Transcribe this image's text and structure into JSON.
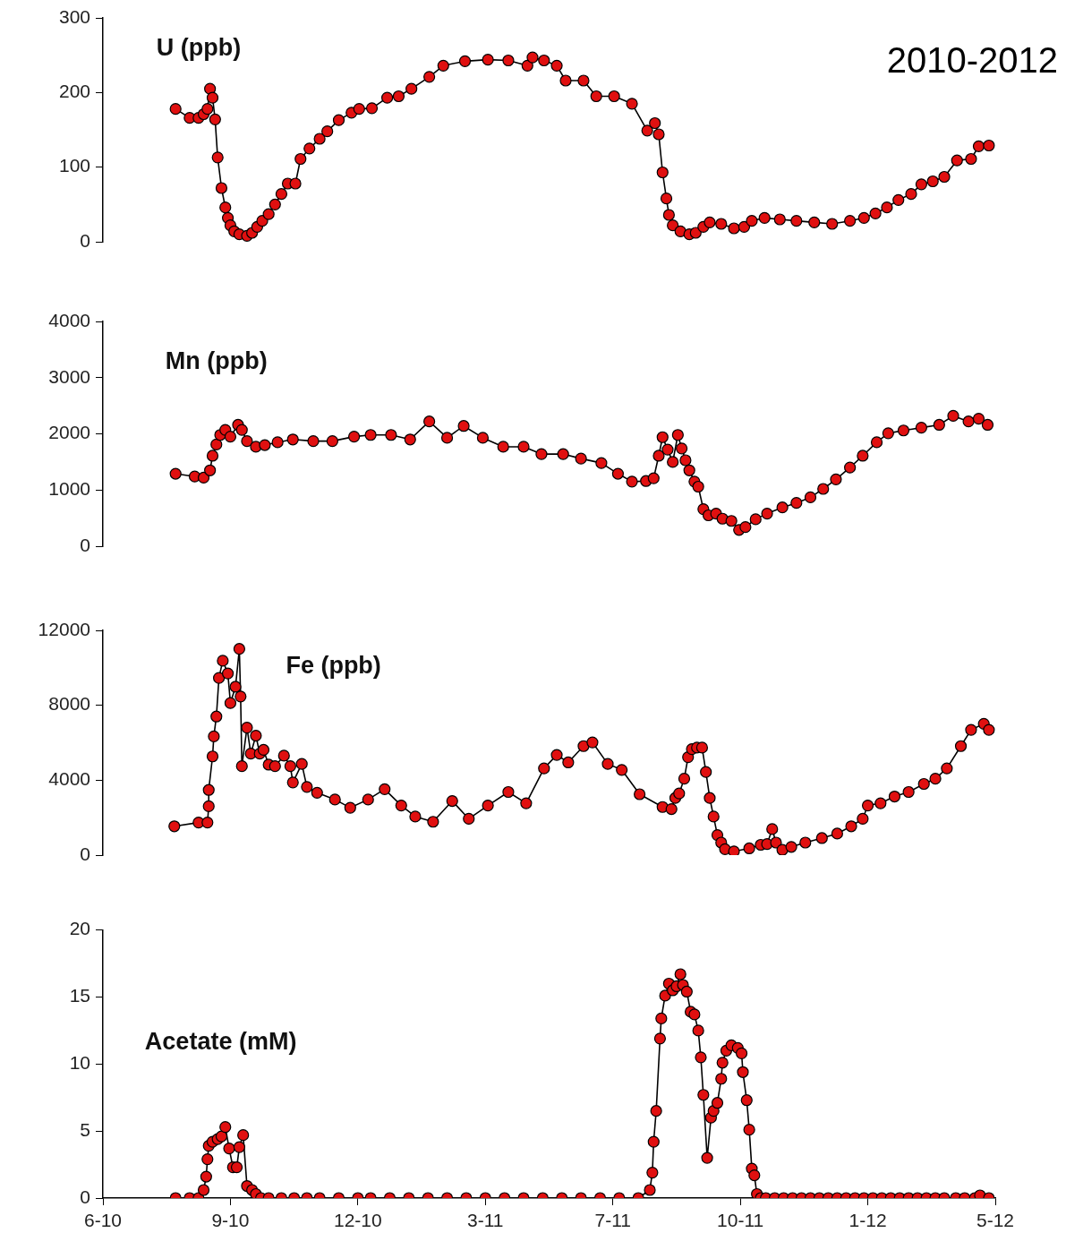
{
  "chart_data": [
    {
      "type": "line",
      "title": "U (ppb)",
      "annotations": [
        "2010-2012"
      ],
      "marker": "circle",
      "color": "#e01010",
      "tick_labels": "y",
      "xlim": [
        "2010-06-01",
        "2012-05-01"
      ],
      "ylim": [
        0,
        300
      ],
      "yticks": [
        0,
        100,
        200,
        300
      ],
      "x": [
        "2010-07-28",
        "2010-08-08",
        "2010-08-15",
        "2010-08-19",
        "2010-08-22",
        "2010-08-24",
        "2010-08-26",
        "2010-08-28",
        "2010-08-30",
        "2010-09-02",
        "2010-09-05",
        "2010-09-07",
        "2010-09-09",
        "2010-09-12",
        "2010-09-16",
        "2010-09-22",
        "2010-09-26",
        "2010-09-30",
        "2010-10-04",
        "2010-10-09",
        "2010-10-14",
        "2010-10-19",
        "2010-10-24",
        "2010-10-30",
        "2010-11-03",
        "2010-11-10",
        "2010-11-18",
        "2010-11-24",
        "2010-12-03",
        "2010-12-13",
        "2010-12-19",
        "2010-12-29",
        "2011-01-10",
        "2011-01-19",
        "2011-01-29",
        "2011-02-12",
        "2011-02-23",
        "2011-03-12",
        "2011-03-30",
        "2011-04-15",
        "2011-04-30",
        "2011-05-04",
        "2011-05-13",
        "2011-05-23",
        "2011-05-30",
        "2011-06-13",
        "2011-06-23",
        "2011-07-07",
        "2011-07-21",
        "2011-08-02",
        "2011-08-08",
        "2011-08-11",
        "2011-08-14",
        "2011-08-17",
        "2011-08-19",
        "2011-08-22",
        "2011-08-28",
        "2011-09-04",
        "2011-09-09",
        "2011-09-15",
        "2011-09-20",
        "2011-09-29",
        "2011-10-09",
        "2011-10-17",
        "2011-10-23",
        "2011-11-02",
        "2011-11-14",
        "2011-11-27",
        "2011-12-11",
        "2011-12-25",
        "2012-01-08",
        "2012-01-19",
        "2012-01-28",
        "2012-02-06",
        "2012-02-15",
        "2012-02-25",
        "2012-03-04",
        "2012-03-13",
        "2012-03-22",
        "2012-04-01",
        "2012-04-12",
        "2012-04-18",
        "2012-04-26"
      ],
      "values": [
        178,
        166,
        166,
        171,
        178,
        205,
        193,
        164,
        113,
        72,
        46,
        32,
        22,
        14,
        10,
        8,
        12,
        20,
        28,
        37,
        50,
        64,
        78,
        78,
        111,
        125,
        138,
        148,
        163,
        173,
        178,
        179,
        193,
        195,
        205,
        221,
        236,
        242,
        244,
        243,
        236,
        247,
        243,
        236,
        216,
        216,
        195,
        195,
        185,
        149,
        159,
        144,
        93,
        58,
        36,
        22,
        14,
        10,
        12,
        20,
        26,
        24,
        18,
        20,
        28,
        32,
        30,
        28,
        26,
        24,
        28,
        32,
        38,
        46,
        56,
        64,
        77,
        81,
        87,
        109,
        111,
        128,
        129
      ]
    },
    {
      "type": "line",
      "title": "Mn (ppb)",
      "marker": "circle",
      "color": "#e01010",
      "tick_labels": "y",
      "xlim": [
        "2010-06-01",
        "2012-05-01"
      ],
      "ylim": [
        0,
        4000
      ],
      "yticks": [
        0,
        1000,
        2000,
        3000,
        4000
      ],
      "x": [
        "2010-07-28",
        "2010-08-12",
        "2010-08-19",
        "2010-08-24",
        "2010-08-26",
        "2010-08-29",
        "2010-09-01",
        "2010-09-05",
        "2010-09-09",
        "2010-09-15",
        "2010-09-18",
        "2010-09-22",
        "2010-09-29",
        "2010-10-06",
        "2010-10-16",
        "2010-10-28",
        "2010-11-13",
        "2010-11-28",
        "2010-12-15",
        "2010-12-28",
        "2011-01-13",
        "2011-01-28",
        "2011-02-12",
        "2011-02-26",
        "2011-03-11",
        "2011-03-26",
        "2011-04-11",
        "2011-04-27",
        "2011-05-11",
        "2011-05-28",
        "2011-06-11",
        "2011-06-27",
        "2011-07-10",
        "2011-07-21",
        "2011-08-01",
        "2011-08-07",
        "2011-08-11",
        "2011-08-14",
        "2011-08-18",
        "2011-08-22",
        "2011-08-26",
        "2011-08-29",
        "2011-09-01",
        "2011-09-04",
        "2011-09-08",
        "2011-09-11",
        "2011-09-15",
        "2011-09-19",
        "2011-09-25",
        "2011-09-30",
        "2011-10-07",
        "2011-10-13",
        "2011-10-18",
        "2011-10-26",
        "2011-11-04",
        "2011-11-16",
        "2011-11-27",
        "2011-12-08",
        "2011-12-18",
        "2011-12-28",
        "2012-01-08",
        "2012-01-18",
        "2012-01-29",
        "2012-02-07",
        "2012-02-19",
        "2012-03-04",
        "2012-03-18",
        "2012-03-29",
        "2012-04-10",
        "2012-04-18",
        "2012-04-25"
      ],
      "values": [
        1290,
        1240,
        1220,
        1350,
        1610,
        1810,
        1980,
        2070,
        1950,
        2160,
        2070,
        1870,
        1770,
        1800,
        1850,
        1900,
        1870,
        1870,
        1950,
        1980,
        1980,
        1900,
        2220,
        1930,
        2140,
        1930,
        1770,
        1770,
        1640,
        1640,
        1560,
        1480,
        1290,
        1150,
        1160,
        1210,
        1610,
        1940,
        1720,
        1500,
        1980,
        1740,
        1530,
        1350,
        1150,
        1060,
        660,
        550,
        580,
        490,
        450,
        290,
        340,
        480,
        580,
        690,
        770,
        870,
        1020,
        1190,
        1400,
        1610,
        1850,
        2010,
        2060,
        2110,
        2160,
        2320,
        2220,
        2270,
        2160
      ]
    },
    {
      "type": "line",
      "title": "Fe (ppb)",
      "marker": "circle",
      "color": "#e01010",
      "tick_labels": "y",
      "xlim": [
        "2010-06-01",
        "2012-05-01"
      ],
      "ylim": [
        0,
        12000
      ],
      "yticks": [
        0,
        4000,
        8000,
        12000
      ],
      "x": [
        "2010-07-27",
        "2010-08-15",
        "2010-08-22",
        "2010-08-23",
        "2010-08-23",
        "2010-08-26",
        "2010-08-27",
        "2010-08-29",
        "2010-08-31",
        "2010-09-03",
        "2010-09-07",
        "2010-09-09",
        "2010-09-13",
        "2010-09-16",
        "2010-09-17",
        "2010-09-18",
        "2010-09-22",
        "2010-09-25",
        "2010-09-29",
        "2010-10-02",
        "2010-10-05",
        "2010-10-09",
        "2010-10-14",
        "2010-10-21",
        "2010-10-26",
        "2010-10-28",
        "2010-11-04",
        "2010-11-08",
        "2010-11-16",
        "2010-11-30",
        "2010-12-12",
        "2010-12-26",
        "2011-01-08",
        "2011-01-21",
        "2011-02-01",
        "2011-02-15",
        "2011-03-02",
        "2011-03-15",
        "2011-03-30",
        "2011-04-15",
        "2011-04-29",
        "2011-05-13",
        "2011-05-23",
        "2011-06-01",
        "2011-06-13",
        "2011-06-20",
        "2011-07-02",
        "2011-07-13",
        "2011-07-27",
        "2011-08-14",
        "2011-08-21",
        "2011-08-24",
        "2011-08-27",
        "2011-08-31",
        "2011-09-03",
        "2011-09-06",
        "2011-09-10",
        "2011-09-14",
        "2011-09-17",
        "2011-09-20",
        "2011-09-23",
        "2011-09-26",
        "2011-09-29",
        "2011-10-02",
        "2011-10-09",
        "2011-10-21",
        "2011-10-30",
        "2011-11-04",
        "2011-11-08",
        "2011-11-11",
        "2011-11-16",
        "2011-11-23",
        "2011-12-04",
        "2011-12-17",
        "2011-12-29",
        "2012-01-09",
        "2012-01-18",
        "2012-01-22",
        "2012-02-01",
        "2012-02-12",
        "2012-02-23",
        "2012-03-06",
        "2012-03-15",
        "2012-03-24",
        "2012-04-04",
        "2012-04-12",
        "2012-04-22",
        "2012-04-26"
      ],
      "values": [
        1540,
        1740,
        1740,
        2610,
        3480,
        5270,
        6340,
        7400,
        9460,
        10380,
        9700,
        8120,
        8990,
        11010,
        8470,
        4750,
        6810,
        5420,
        6380,
        5420,
        5620,
        4830,
        4750,
        5310,
        4750,
        3880,
        4870,
        3640,
        3330,
        2970,
        2530,
        2970,
        3520,
        2650,
        2060,
        1780,
        2890,
        1940,
        2650,
        3370,
        2770,
        4630,
        5350,
        4950,
        5820,
        6020,
        4870,
        4550,
        3250,
        2570,
        2460,
        3050,
        3290,
        4080,
        5230,
        5660,
        5740,
        5740,
        4440,
        3050,
        2060,
        1070,
        670,
        320,
        200,
        360,
        550,
        590,
        1390,
        670,
        280,
        440,
        670,
        910,
        1150,
        1540,
        1940,
        2650,
        2770,
        3130,
        3370,
        3800,
        4080,
        4630,
        5820,
        6690,
        7010,
        6690
      ]
    },
    {
      "type": "line",
      "title": "Acetate (mM)",
      "marker": "circle",
      "color": "#e01010",
      "xlim": [
        "2010-06-01",
        "2012-05-01"
      ],
      "xticks": [
        {
          "value": "2010-06-01",
          "label": "6-10"
        },
        {
          "value": "2010-09-09",
          "label": "9-10"
        },
        {
          "value": "2010-12-18",
          "label": "12-10"
        },
        {
          "value": "2011-03-28",
          "label": "3-11"
        },
        {
          "value": "2011-07-06",
          "label": "7-11"
        },
        {
          "value": "2011-10-14",
          "label": "10-11"
        },
        {
          "value": "2012-01-22",
          "label": "1-12"
        },
        {
          "value": "2012-05-01",
          "label": "5-12"
        }
      ],
      "ylim": [
        0,
        20
      ],
      "yticks": [
        0,
        5,
        10,
        15,
        20
      ],
      "x": [
        "2010-07-28",
        "2010-08-08",
        "2010-08-15",
        "2010-08-19",
        "2010-08-21",
        "2010-08-22",
        "2010-08-23",
        "2010-08-26",
        "2010-08-30",
        "2010-09-02",
        "2010-09-05",
        "2010-09-08",
        "2010-09-11",
        "2010-09-14",
        "2010-09-16",
        "2010-09-19",
        "2010-09-22",
        "2010-09-26",
        "2010-09-29",
        "2010-10-03",
        "2010-10-09",
        "2010-10-19",
        "2010-10-29",
        "2010-11-08",
        "2010-11-18",
        "2010-12-03",
        "2010-12-18",
        "2010-12-28",
        "2011-01-12",
        "2011-01-27",
        "2011-02-11",
        "2011-02-26",
        "2011-03-13",
        "2011-03-28",
        "2011-04-12",
        "2011-04-27",
        "2011-05-12",
        "2011-05-27",
        "2011-06-11",
        "2011-06-26",
        "2011-07-11",
        "2011-07-26",
        "2011-08-04",
        "2011-08-06",
        "2011-08-07",
        "2011-08-09",
        "2011-08-12",
        "2011-08-13",
        "2011-08-16",
        "2011-08-19",
        "2011-08-22",
        "2011-08-25",
        "2011-08-28",
        "2011-08-30",
        "2011-09-02",
        "2011-09-05",
        "2011-09-08",
        "2011-09-11",
        "2011-09-13",
        "2011-09-15",
        "2011-09-18",
        "2011-09-21",
        "2011-09-23",
        "2011-09-26",
        "2011-09-29",
        "2011-09-30",
        "2011-10-03",
        "2011-10-07",
        "2011-10-12",
        "2011-10-15",
        "2011-10-16",
        "2011-10-19",
        "2011-10-21",
        "2011-10-23",
        "2011-10-25",
        "2011-10-27",
        "2011-10-30",
        "2011-11-03",
        "2011-11-10",
        "2011-11-17",
        "2011-11-24",
        "2011-12-01",
        "2011-12-08",
        "2011-12-15",
        "2011-12-22",
        "2011-12-29",
        "2012-01-05",
        "2012-01-12",
        "2012-01-19",
        "2012-01-26",
        "2012-02-02",
        "2012-02-09",
        "2012-02-16",
        "2012-02-23",
        "2012-03-01",
        "2012-03-08",
        "2012-03-15",
        "2012-03-22",
        "2012-03-31",
        "2012-04-07",
        "2012-04-15",
        "2012-04-19",
        "2012-04-26"
      ],
      "values": [
        0,
        0,
        0,
        0.6,
        1.6,
        2.9,
        3.9,
        4.2,
        4.4,
        4.6,
        5.3,
        3.7,
        2.3,
        2.3,
        3.8,
        4.7,
        0.9,
        0.6,
        0.3,
        0,
        0,
        0,
        0,
        0,
        0,
        0,
        0,
        0,
        0,
        0,
        0,
        0,
        0,
        0,
        0,
        0,
        0,
        0,
        0,
        0,
        0,
        0,
        0.6,
        1.9,
        4.2,
        6.5,
        11.9,
        13.4,
        15.1,
        16,
        15.5,
        15.8,
        16.7,
        15.9,
        15.4,
        13.9,
        13.7,
        12.5,
        10.5,
        7.7,
        3,
        6,
        6.5,
        7.1,
        8.9,
        10.1,
        11,
        11.4,
        11.2,
        10.8,
        9.4,
        7.3,
        5.1,
        2.2,
        1.7,
        0.3,
        0,
        0,
        0,
        0,
        0,
        0,
        0,
        0,
        0,
        0,
        0,
        0,
        0,
        0,
        0,
        0,
        0,
        0,
        0,
        0,
        0,
        0,
        0,
        0,
        0,
        0.2,
        0
      ]
    }
  ]
}
